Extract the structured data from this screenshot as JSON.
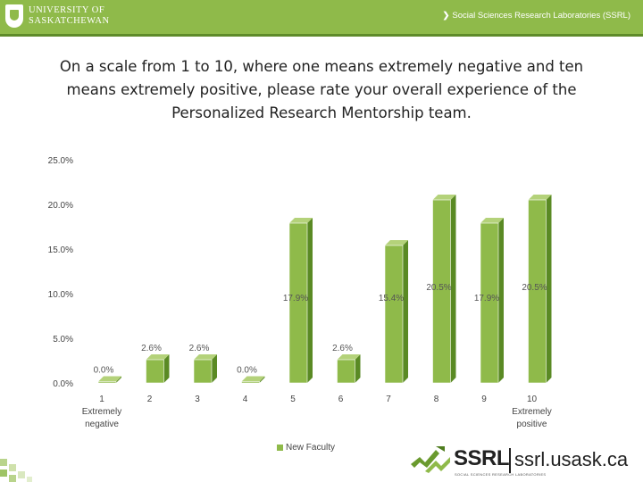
{
  "header": {
    "university_line1": "UNIVERSITY OF",
    "university_line2": "SASKATCHEWAN",
    "lab_name": "Social Sciences Research Laboratories (SSRL)"
  },
  "colors": {
    "accent": "#8fba4a",
    "bar_front": "#8fba4a",
    "bar_side": "#5a8a24",
    "bar_top": "#b4d27a"
  },
  "chart_data": {
    "type": "bar",
    "title": "On a scale from 1 to 10, where one means extremely negative and ten means extremely positive, please rate your overall experience of the Personalized Research Mentorship team.",
    "categories": [
      [
        "1",
        "Extremely",
        "negative"
      ],
      [
        "2"
      ],
      [
        "3"
      ],
      [
        "4"
      ],
      [
        "5"
      ],
      [
        "6"
      ],
      [
        "7"
      ],
      [
        "8"
      ],
      [
        "9"
      ],
      [
        "10",
        "Extremely",
        "positive"
      ]
    ],
    "series": [
      {
        "name": "New Faculty",
        "values": [
          0.0,
          2.6,
          2.6,
          0.0,
          17.9,
          2.6,
          15.4,
          20.5,
          17.9,
          20.5
        ],
        "labels": [
          "0.0%",
          "2.6%",
          "2.6%",
          "0.0%",
          "17.9%",
          "2.6%",
          "15.4%",
          "20.5%",
          "17.9%",
          "20.5%"
        ]
      }
    ],
    "ylim": [
      0,
      25
    ],
    "yticks": [
      "0.0%",
      "5.0%",
      "10.0%",
      "15.0%",
      "20.0%",
      "25.0%"
    ],
    "ytick_values": [
      0,
      5,
      10,
      15,
      20,
      25
    ],
    "grid": false,
    "legend": "bottom"
  },
  "footer": {
    "logo_word": "SSRL",
    "logo_sub": "SOCIAL SCIENCES RESEARCH LABORATORIES",
    "url": "ssrl.usask.ca"
  }
}
